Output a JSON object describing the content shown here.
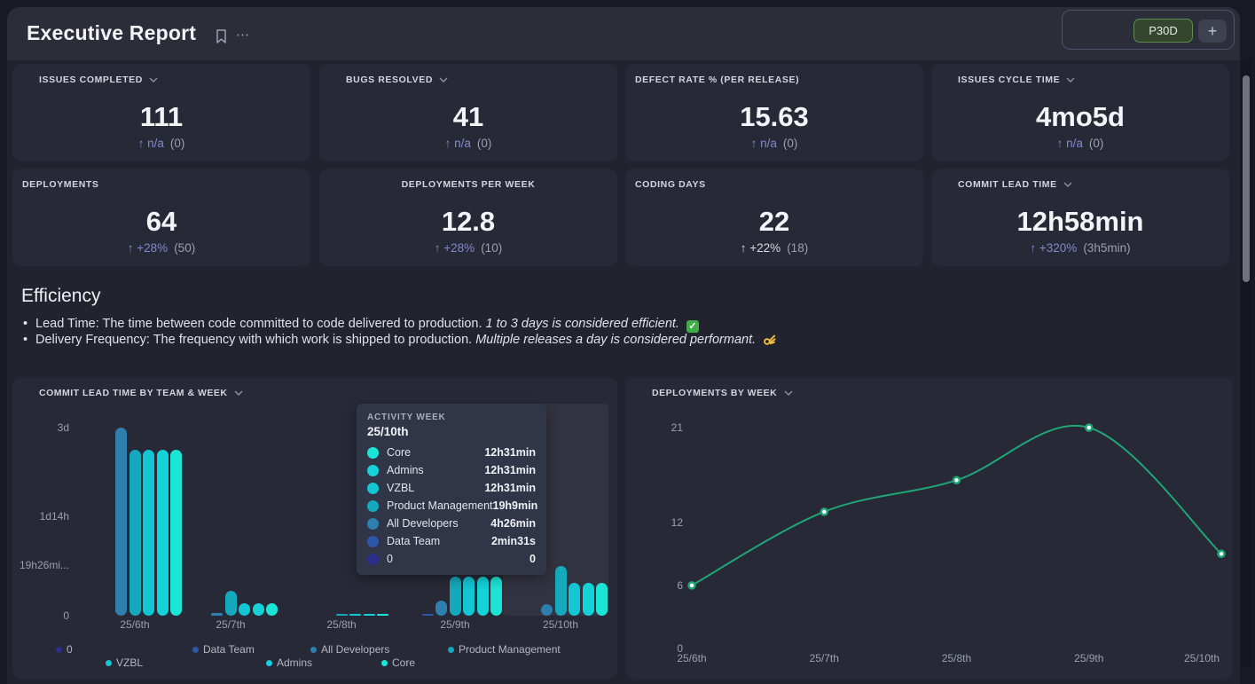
{
  "colors": {
    "accent_purple": "#8289cc",
    "muted_text": "#9aa0ac",
    "line_green": "#1fa674",
    "period_green_bg": "#35462e",
    "period_green_border": "#5f8c50"
  },
  "header": {
    "title": "Executive Report",
    "period_button": "P30D",
    "add_button": "+"
  },
  "kpis": [
    {
      "label": "ISSUES COMPLETED",
      "has_dropdown": true,
      "align": "left",
      "value": "111",
      "arrow": "↑",
      "change": "n/a",
      "previous": "(0)",
      "accent": true
    },
    {
      "label": "BUGS RESOLVED",
      "has_dropdown": true,
      "align": "left",
      "value": "41",
      "arrow": "↑",
      "change": "n/a",
      "previous": "(0)",
      "accent": true
    },
    {
      "label": "DEFECT RATE % (PER RELEASE)",
      "has_dropdown": false,
      "align": "left",
      "value": "15.63",
      "arrow": "↑",
      "change": "n/a",
      "previous": "(0)",
      "accent": true
    },
    {
      "label": "ISSUES CYCLE TIME",
      "has_dropdown": true,
      "align": "left",
      "value": "4mo5d",
      "arrow": "↑",
      "change": "n/a",
      "previous": "(0)",
      "accent": true
    },
    {
      "label": "DEPLOYMENTS",
      "has_dropdown": false,
      "align": "left",
      "value": "64",
      "arrow": "↑",
      "change": "+28%",
      "previous": "(50)",
      "accent": true
    },
    {
      "label": "DEPLOYMENTS PER WEEK",
      "has_dropdown": false,
      "align": "center",
      "value": "12.8",
      "arrow": "↑",
      "change": "+28%",
      "previous": "(10)",
      "accent": true
    },
    {
      "label": "CODING DAYS",
      "has_dropdown": false,
      "align": "left",
      "value": "22",
      "arrow": "↑",
      "change": "+22%",
      "previous": "(18)",
      "accent": false
    },
    {
      "label": "COMMIT LEAD TIME",
      "has_dropdown": true,
      "align": "left",
      "value": "12h58min",
      "arrow": "↑",
      "change": "+320%",
      "previous": "(3h5min)",
      "accent": true
    }
  ],
  "efficiency": {
    "title": "Efficiency",
    "bullets": [
      {
        "text": "Lead Time: The time between code committed to code delivered to production.",
        "note": "1 to 3 days is considered efficient.",
        "emoji": "check"
      },
      {
        "text": "Delivery Frequency: The frequency with which work is shipped to production.",
        "note": "Multiple releases a day is considered performant.",
        "emoji": "ok-hand"
      }
    ]
  },
  "chart_data": [
    {
      "type": "bar",
      "title": "COMMIT LEAD TIME BY TEAM & WEEK",
      "categories": [
        "25/6th",
        "25/7th",
        "25/8th",
        "25/9th",
        "25/10th"
      ],
      "unit": "hours",
      "ylim": [
        0,
        77
      ],
      "yticks": [
        {
          "value": 0,
          "label": "0"
        },
        {
          "value": 19.43,
          "label": "19h26mi..."
        },
        {
          "value": 38,
          "label": "1d14h"
        },
        {
          "value": 72,
          "label": "3d"
        }
      ],
      "series": [
        {
          "name": "0",
          "color": "#2c2f8a",
          "values": [
            0,
            0,
            0,
            0,
            0
          ]
        },
        {
          "name": "Data Team",
          "color": "#2e56a8",
          "values": [
            0,
            0,
            0,
            0.7,
            0.04
          ]
        },
        {
          "name": "All Developers",
          "color": "#2e7fad",
          "values": [
            72,
            1,
            0,
            5.8,
            4.4
          ]
        },
        {
          "name": "Product Management",
          "color": "#14a9bc",
          "values": [
            63.5,
            9.5,
            0.7,
            15,
            19.15
          ]
        },
        {
          "name": "VZBL",
          "color": "#12c6d2",
          "values": [
            63.5,
            4.8,
            0.7,
            15,
            12.52
          ]
        },
        {
          "name": "Admins",
          "color": "#13d2d8",
          "values": [
            63.5,
            4.8,
            0.7,
            15,
            12.52
          ]
        },
        {
          "name": "Core",
          "color": "#1be5d6",
          "values": [
            63.5,
            4.8,
            0.7,
            15,
            12.52
          ]
        }
      ],
      "highlight_category": "25/10th",
      "legend_rows": [
        [
          "0",
          "Data Team",
          "All Developers",
          "Product Management"
        ],
        [
          "VZBL",
          "Admins",
          "Core"
        ]
      ],
      "tooltip": {
        "header": "ACTIVITY WEEK",
        "week": "25/10th",
        "rows": [
          {
            "name": "Core",
            "color": "#1be5d6",
            "value": "12h31min"
          },
          {
            "name": "Admins",
            "color": "#13d2d8",
            "value": "12h31min"
          },
          {
            "name": "VZBL",
            "color": "#12c6d2",
            "value": "12h31min"
          },
          {
            "name": "Product Management",
            "color": "#14a9bc",
            "value": "19h9min"
          },
          {
            "name": "All Developers",
            "color": "#2e7fad",
            "value": "4h26min"
          },
          {
            "name": "Data Team",
            "color": "#2e56a8",
            "value": "2min31s"
          },
          {
            "name": "0",
            "color": "#2c2f8a",
            "value": "0"
          }
        ]
      }
    },
    {
      "type": "line",
      "title": "DEPLOYMENTS BY WEEK",
      "x": [
        "25/6th",
        "25/7th",
        "25/8th",
        "25/9th",
        "25/10th"
      ],
      "values": [
        6,
        13,
        16,
        21,
        9
      ],
      "yticks": [
        0,
        6,
        12,
        21
      ],
      "ylim": [
        0,
        22
      ],
      "color": "#1fa674",
      "legend": "none",
      "grid": false
    }
  ]
}
